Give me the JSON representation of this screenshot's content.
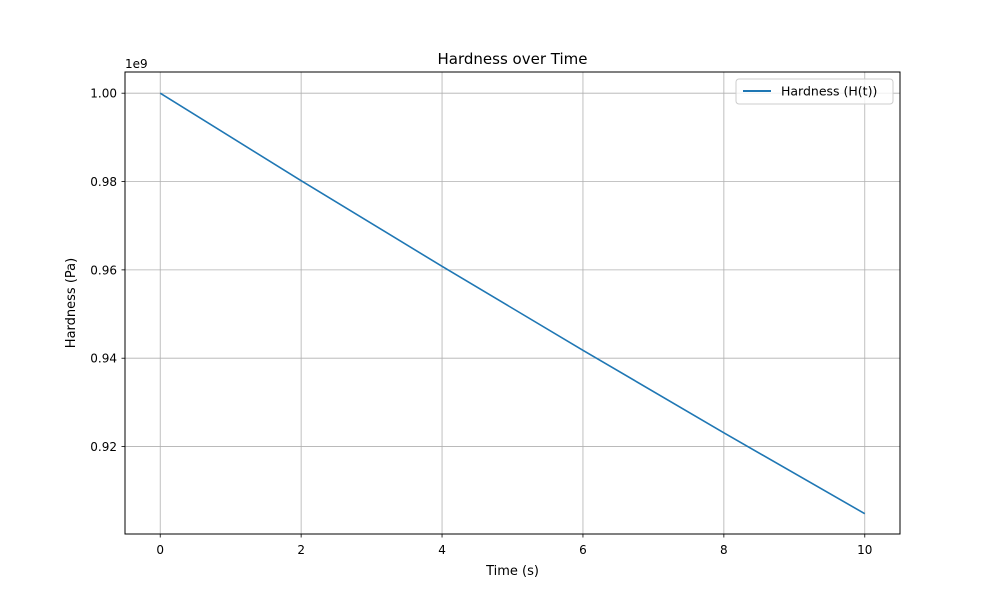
{
  "chart_data": {
    "type": "line",
    "title": "Hardness over Time",
    "xlabel": "Time (s)",
    "ylabel": "Hardness (Pa)",
    "y_offset_text": "1e9",
    "xlim": [
      -0.5,
      10.5
    ],
    "ylim": [
      0.9002,
      1.0048
    ],
    "x_ticks": [
      0,
      2,
      4,
      6,
      8,
      10
    ],
    "x_tick_labels": [
      "0",
      "2",
      "4",
      "6",
      "8",
      "10"
    ],
    "y_ticks": [
      0.92,
      0.94,
      0.96,
      0.98,
      1.0
    ],
    "y_tick_labels": [
      "0.92",
      "0.94",
      "0.96",
      "0.98",
      "1.00"
    ],
    "grid": true,
    "legend_position": "top-right",
    "series": [
      {
        "name": "Hardness (H(t))",
        "color": "#1f77b4",
        "x": [
          0,
          2,
          4,
          6,
          8,
          10
        ],
        "y": [
          1.0,
          0.9802,
          0.9608,
          0.9418,
          0.9231,
          0.9048
        ]
      }
    ]
  }
}
